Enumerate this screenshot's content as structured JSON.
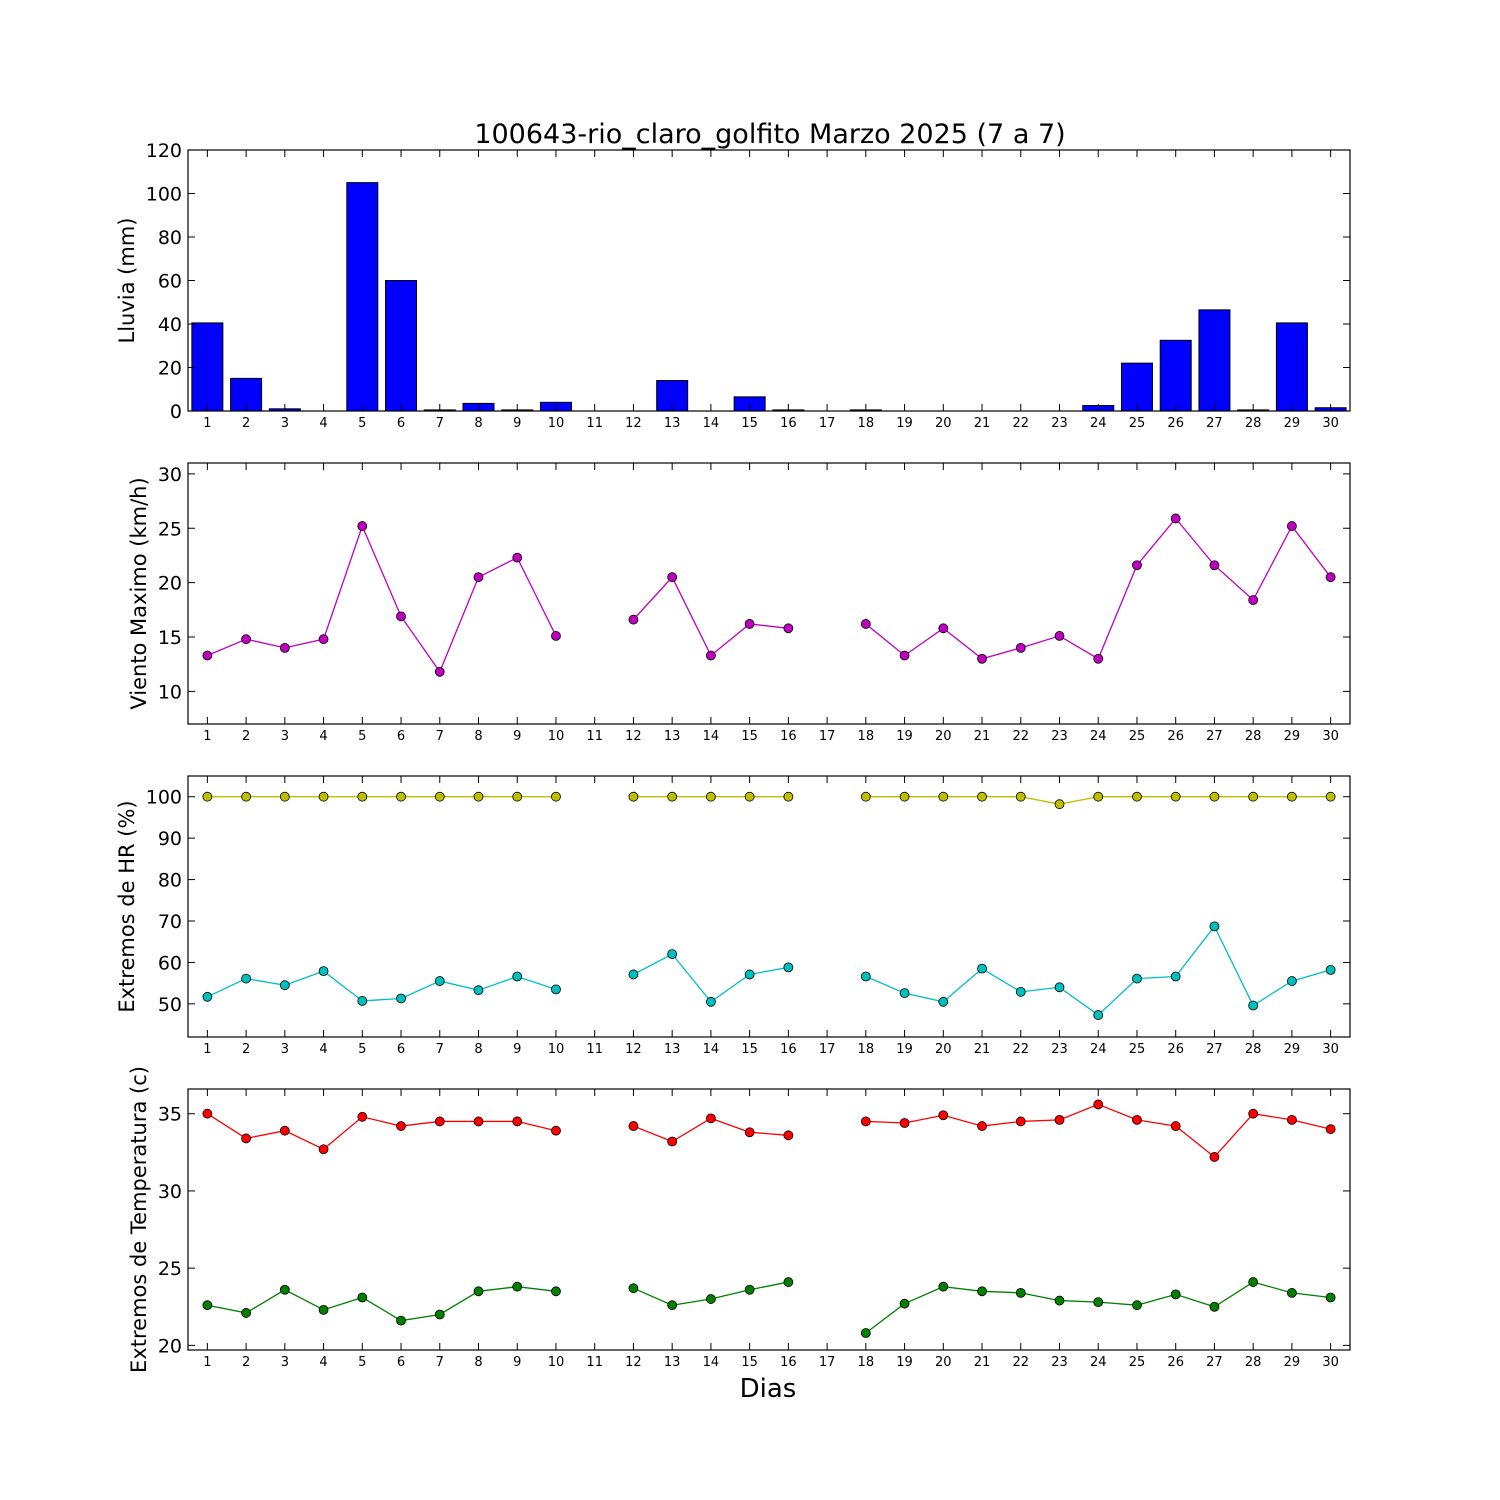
{
  "figure": {
    "title": "100643-rio_claro_golfito Marzo 2025  (7 a 7)",
    "xlabel": "Dias"
  },
  "chart_data": [
    {
      "type": "bar",
      "ylabel": "Lluvia (mm)",
      "ylim": [
        0,
        120
      ],
      "yticks": [
        0,
        20,
        40,
        60,
        80,
        100,
        120
      ],
      "x": [
        1,
        2,
        3,
        4,
        5,
        6,
        7,
        8,
        9,
        10,
        11,
        12,
        13,
        14,
        15,
        16,
        17,
        18,
        19,
        20,
        21,
        22,
        23,
        24,
        25,
        26,
        27,
        28,
        29,
        30
      ],
      "values": [
        40.5,
        15,
        1,
        0,
        105,
        60,
        0.5,
        3.5,
        0.5,
        4,
        null,
        null,
        14,
        0,
        6.5,
        0.5,
        null,
        0.5,
        0,
        0,
        0,
        0,
        0,
        2.5,
        22,
        32.5,
        46.5,
        0.5,
        40.5,
        1.5
      ],
      "color": "#0000ff"
    },
    {
      "type": "line",
      "ylabel": "Viento Maximo (km/h)",
      "ylim": [
        7,
        31
      ],
      "yticks": [
        10,
        15,
        20,
        25,
        30
      ],
      "x": [
        1,
        2,
        3,
        4,
        5,
        6,
        7,
        8,
        9,
        10,
        11,
        12,
        13,
        14,
        15,
        16,
        17,
        18,
        19,
        20,
        21,
        22,
        23,
        24,
        25,
        26,
        27,
        28,
        29,
        30
      ],
      "series": [
        {
          "values": [
            13.3,
            14.8,
            14.0,
            14.8,
            25.2,
            16.9,
            11.8,
            20.5,
            22.3,
            15.1,
            null,
            16.6,
            20.5,
            13.3,
            16.2,
            15.8,
            null,
            16.2,
            13.3,
            15.8,
            13.0,
            14.0,
            15.1,
            13.0,
            21.6,
            25.9,
            21.6,
            18.4,
            25.2,
            20.5
          ],
          "color": "#bf00bf"
        }
      ]
    },
    {
      "type": "line",
      "ylabel": "Extremos de HR (%)",
      "ylim": [
        42,
        105
      ],
      "yticks": [
        50,
        60,
        70,
        80,
        90,
        100
      ],
      "x": [
        1,
        2,
        3,
        4,
        5,
        6,
        7,
        8,
        9,
        10,
        11,
        12,
        13,
        14,
        15,
        16,
        17,
        18,
        19,
        20,
        21,
        22,
        23,
        24,
        25,
        26,
        27,
        28,
        29,
        30
      ],
      "series": [
        {
          "values": [
            100,
            100,
            100,
            100,
            100,
            100,
            100,
            100,
            100,
            100,
            null,
            100,
            100,
            100,
            100,
            100,
            null,
            100,
            100,
            100,
            100,
            100,
            98.2,
            100,
            100,
            100,
            100,
            100,
            100,
            100
          ],
          "color": "#bfbf00"
        },
        {
          "values": [
            51.7,
            56.1,
            54.5,
            57.9,
            50.7,
            51.3,
            55.5,
            53.3,
            56.6,
            53.5,
            null,
            57.1,
            62.0,
            50.5,
            57.1,
            58.8,
            null,
            56.6,
            52.6,
            50.5,
            58.5,
            52.9,
            54.0,
            47.3,
            56.1,
            56.6,
            68.7,
            49.6,
            55.5,
            58.2
          ],
          "color": "#00bfbf"
        }
      ]
    },
    {
      "type": "line",
      "ylabel": "Extremos de Temperatura (c)",
      "ylim": [
        19.7,
        36.6
      ],
      "yticks": [
        20,
        25,
        30,
        35
      ],
      "x": [
        1,
        2,
        3,
        4,
        5,
        6,
        7,
        8,
        9,
        10,
        11,
        12,
        13,
        14,
        15,
        16,
        17,
        18,
        19,
        20,
        21,
        22,
        23,
        24,
        25,
        26,
        27,
        28,
        29,
        30
      ],
      "series": [
        {
          "values": [
            35.0,
            33.4,
            33.9,
            32.7,
            34.8,
            34.2,
            34.5,
            34.5,
            34.5,
            33.9,
            null,
            34.2,
            33.2,
            34.7,
            33.8,
            33.6,
            null,
            34.5,
            34.4,
            34.9,
            34.2,
            34.5,
            34.6,
            35.6,
            34.6,
            34.2,
            32.2,
            35.0,
            34.6,
            34.0
          ],
          "color": "#ff0000"
        },
        {
          "values": [
            22.6,
            22.1,
            23.6,
            22.3,
            23.1,
            21.6,
            22.0,
            23.5,
            23.8,
            23.5,
            null,
            23.7,
            22.6,
            23.0,
            23.6,
            24.1,
            null,
            20.8,
            22.7,
            23.8,
            23.5,
            23.4,
            22.9,
            22.8,
            22.6,
            23.3,
            22.5,
            24.1,
            23.4,
            23.1
          ],
          "color": "#007f00"
        }
      ]
    }
  ]
}
